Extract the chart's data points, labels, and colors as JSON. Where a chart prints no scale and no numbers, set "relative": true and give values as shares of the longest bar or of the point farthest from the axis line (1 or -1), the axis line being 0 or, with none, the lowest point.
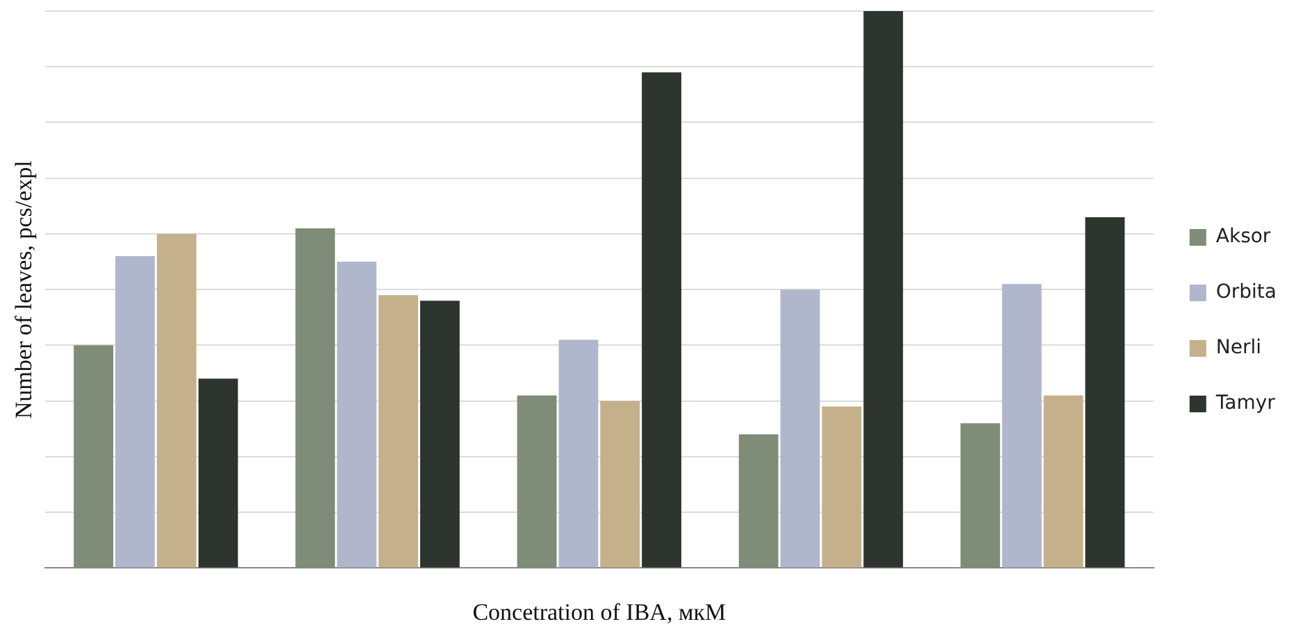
{
  "chart_data": {
    "type": "bar",
    "relative": true,
    "xlabel": "Concetration of IBA, мкМ",
    "ylabel": "Number of leaves, pcs/expl",
    "categories": [
      null,
      null,
      null,
      null,
      null
    ],
    "grid": "y",
    "legend": "right",
    "series": [
      {
        "name": "Aksor",
        "color": "#7f8c78",
        "values": [
          0.4,
          0.61,
          0.31,
          0.24,
          0.26
        ]
      },
      {
        "name": "Orbita",
        "color": "#b0b7cc",
        "values": [
          0.56,
          0.55,
          0.41,
          0.5,
          0.51
        ]
      },
      {
        "name": "Nerli",
        "color": "#c4b08a",
        "values": [
          0.6,
          0.49,
          0.3,
          0.29,
          0.31
        ]
      },
      {
        "name": "Tamyr",
        "color": "#2e342e",
        "values": [
          0.34,
          0.48,
          0.89,
          1,
          0.63
        ]
      }
    ]
  }
}
